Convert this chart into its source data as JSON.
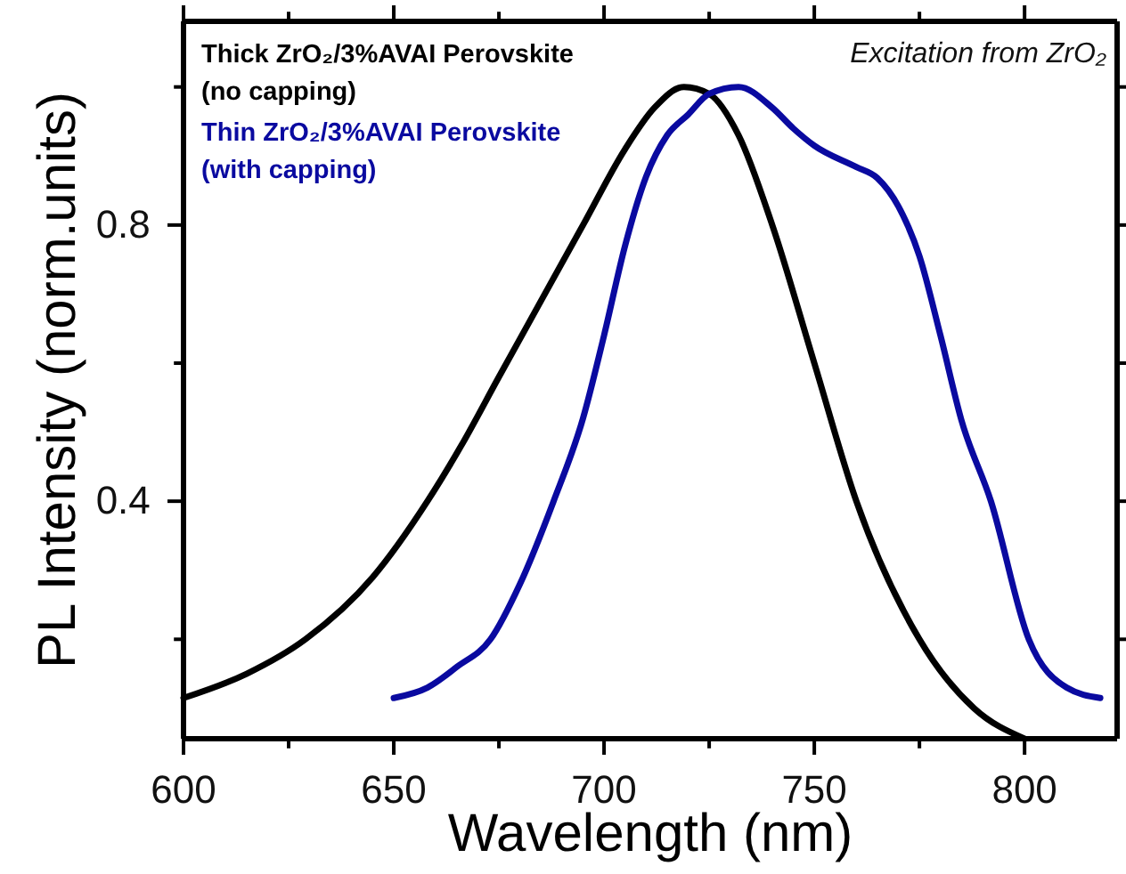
{
  "chart_data": {
    "type": "line",
    "xlabel": "Wavelength (nm)",
    "ylabel": "PL Intensity (norm.units)",
    "annotations": [
      "Excitation from ZrO₂"
    ],
    "xlim": [
      600,
      822
    ],
    "ylim": [
      0.056,
      1.095
    ],
    "xticks": [
      600,
      {
        "value": 625,
        "label": null
      },
      650,
      {
        "value": 675,
        "label": null
      },
      700,
      {
        "value": 725,
        "label": null
      },
      750,
      {
        "value": 775,
        "label": null
      },
      800
    ],
    "yticks": [
      {
        "value": 0.2,
        "label": null
      },
      0.4,
      {
        "value": 0.6,
        "label": null
      },
      0.8,
      {
        "value": 1.0,
        "label": null
      }
    ],
    "grid": false,
    "marker": "none",
    "line_style": "solid",
    "series": [
      {
        "name": "Thick ZrO₂/3%AVAI Perovskite (no capping)",
        "color": "#000000",
        "x": [
          600,
          615,
          629,
          645,
          658,
          666,
          675,
          685,
          695,
          705,
          712,
          719,
          725,
          732,
          740,
          750,
          760,
          775,
          788,
          800
        ],
        "values": [
          0.115,
          0.15,
          0.2,
          0.29,
          0.4,
          0.48,
          0.58,
          0.69,
          0.8,
          0.91,
          0.97,
          1.0,
          0.99,
          0.93,
          0.8,
          0.6,
          0.4,
          0.2,
          0.1,
          0.056
        ]
      },
      {
        "name": "Thin ZrO₂/3%AVAI Perovskite (with capping)",
        "color": "#0a0aa0",
        "x": [
          650,
          658,
          665,
          673,
          680,
          688,
          695,
          700,
          705,
          710,
          715,
          720,
          725,
          732,
          740,
          745,
          750,
          760,
          765,
          770,
          775,
          780,
          785,
          792,
          801,
          810,
          818
        ],
        "values": [
          0.115,
          0.13,
          0.16,
          0.2,
          0.28,
          0.4,
          0.52,
          0.64,
          0.77,
          0.87,
          0.93,
          0.96,
          0.99,
          1.0,
          0.97,
          0.94,
          0.915,
          0.884,
          0.868,
          0.827,
          0.755,
          0.64,
          0.517,
          0.4,
          0.2,
          0.13,
          0.115
        ]
      }
    ]
  }
}
